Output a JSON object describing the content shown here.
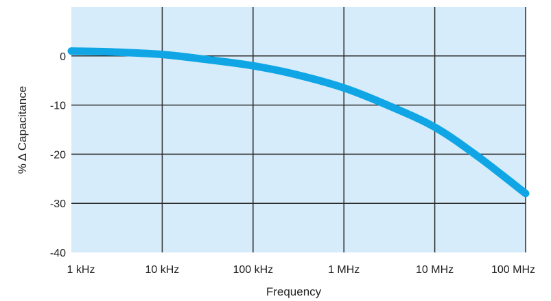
{
  "chart_data": {
    "type": "line",
    "title": "",
    "xlabel": "Frequency",
    "ylabel": "% Δ Capacitance",
    "x_scale": "log",
    "x_ticks": [
      "1 kHz",
      "10 kHz",
      "100 kHz",
      "1 MHz",
      "10 MHz",
      "100 MHz"
    ],
    "x_tick_values_hz": [
      1000,
      10000,
      100000,
      1000000,
      10000000,
      100000000
    ],
    "xlim_hz": [
      1000,
      100000000
    ],
    "y_ticks": [
      0,
      -10,
      -20,
      -30,
      -40
    ],
    "ylim": [
      -40,
      10
    ],
    "grid": true,
    "series": [
      {
        "x_hz": [
          1000,
          3000,
          10000,
          30000,
          100000,
          300000,
          1000000,
          3000000,
          10000000,
          30000000,
          100000000
        ],
        "values": [
          1,
          0.8,
          0.3,
          -0.7,
          -2,
          -3.8,
          -6.5,
          -10,
          -14.5,
          -20.5,
          -28
        ]
      }
    ]
  },
  "colors": {
    "plot_background": "#d6ecfa",
    "grid": "#2b2b2b",
    "curve": "#10a6e6"
  }
}
